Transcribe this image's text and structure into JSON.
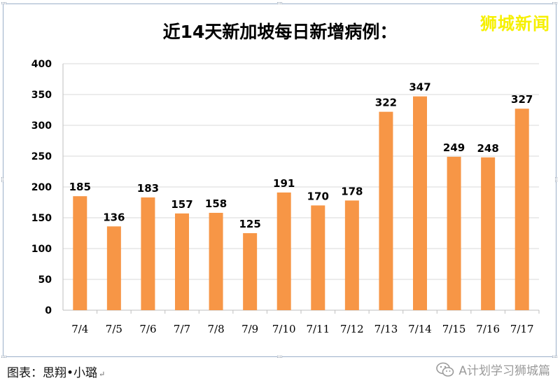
{
  "watermark": "狮城新闻",
  "caption": "图表：思翔•小璐",
  "return_mark": "↵",
  "brand": "A计划学习狮城篇",
  "colors": {
    "bar": "#f79646",
    "grid": "#d9d9d9",
    "axis": "#bfbfbf"
  },
  "icons": {
    "brand": "wechat-icon"
  },
  "chart_data": {
    "type": "bar",
    "title": "近14天新加坡每日新增病例：",
    "categories": [
      "7/4",
      "7/5",
      "7/6",
      "7/7",
      "7/8",
      "7/9",
      "7/10",
      "7/11",
      "7/12",
      "7/13",
      "7/14",
      "7/15",
      "7/16",
      "7/17"
    ],
    "values": [
      185,
      136,
      183,
      157,
      158,
      125,
      191,
      170,
      178,
      322,
      347,
      249,
      248,
      327
    ],
    "yticks": [
      "0",
      "50",
      "100",
      "150",
      "200",
      "250",
      "300",
      "350",
      "400"
    ],
    "ylim": [
      0,
      400
    ],
    "grid": true,
    "legend": "none",
    "xlabel": "",
    "ylabel": ""
  }
}
